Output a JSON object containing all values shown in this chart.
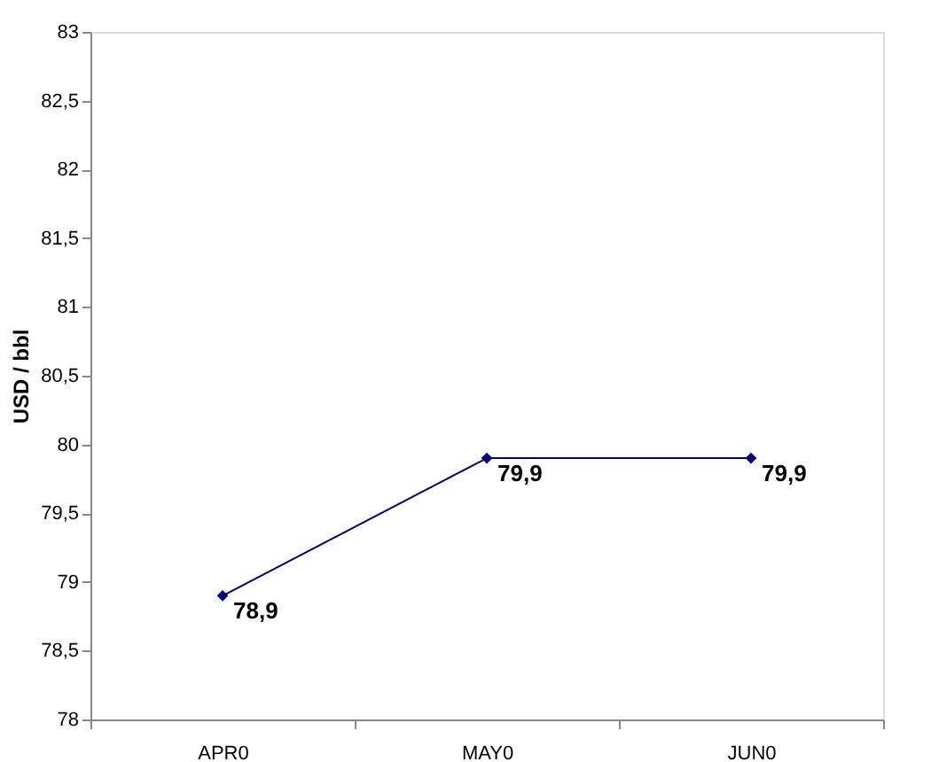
{
  "chart_data": {
    "type": "line",
    "ylabel": "USD / bbl",
    "categories": [
      "APR0",
      "MAY0",
      "JUN0"
    ],
    "series": [
      {
        "color": "#000080",
        "values": [
          78.9,
          79.9,
          79.9
        ],
        "value_labels": [
          "78,9",
          "79,9",
          "79,9"
        ]
      }
    ],
    "ylim": [
      78,
      83
    ],
    "yticks": [
      78,
      {
        "value": 78.5,
        "label": "78,5"
      },
      79,
      {
        "value": 79.5,
        "label": "79,5"
      },
      80,
      {
        "value": 80.5,
        "label": "80,5"
      },
      81,
      {
        "value": 81.5,
        "label": "81,5"
      },
      82,
      {
        "value": 82.5,
        "label": "82,5"
      },
      83
    ],
    "marker": "diamond",
    "line_style": "solid",
    "grid": false,
    "legend": false
  }
}
